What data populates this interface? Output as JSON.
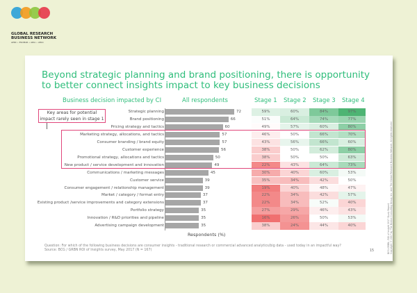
{
  "logo": {
    "name": "GLOBAL RESEARCH BUSINESS NETWORK",
    "line1": "GLOBAL RESEARCH",
    "line2": "BUSINESS NETWORK",
    "tagline": "APRC • ESOMAR • ARIA • AMAI",
    "colors": [
      "#2aa0d8",
      "#f29a1e",
      "#8cc63f",
      "#e5394a"
    ]
  },
  "title": "Beyond strategic planning and brand positioning, there is opportunity to better connect insights impact to key business decisions",
  "callout": "Key areas for potential impact rarely seen in stage 1",
  "chart_data": {
    "type": "bar",
    "column_headers": {
      "categories": "Business decision impacted by CI",
      "all": "All respondents",
      "stages": [
        "Stage 1",
        "Stage 2",
        "Stage 3",
        "Stage 4"
      ]
    },
    "categories": [
      "Strategic planning",
      "Brand positioning",
      "Pricing strategy and tactics",
      "Marketing strategy, allocations, and tactics",
      "Consumer branding / brand equity",
      "Customer experience",
      "Promotional strategy, allocations and tactics",
      "New product / service development and innovation",
      "Communications / marketing messages",
      "Customer service",
      "Consumer engagement / relationship management",
      "Market / category / format entry",
      "Existing product /service improvements and category extensions",
      "Portfolio strategy",
      "Innovation / R&D priorities and pipeline",
      "Advertising campaign development"
    ],
    "values": [
      72,
      66,
      60,
      57,
      57,
      56,
      50,
      49,
      45,
      39,
      39,
      37,
      37,
      35,
      35,
      35
    ],
    "stage_table": [
      [
        59,
        60,
        84,
        97
      ],
      [
        51,
        64,
        74,
        77
      ],
      [
        49,
        57,
        60,
        80
      ],
      [
        46,
        50,
        66,
        70
      ],
      [
        43,
        56,
        66,
        60
      ],
      [
        38,
        50,
        62,
        80
      ],
      [
        38,
        50,
        50,
        63
      ],
      [
        22,
        43,
        64,
        73
      ],
      [
        30,
        40,
        60,
        53
      ],
      [
        35,
        34,
        42,
        50
      ],
      [
        19,
        40,
        48,
        47
      ],
      [
        22,
        34,
        42,
        57
      ],
      [
        22,
        34,
        52,
        40
      ],
      [
        27,
        29,
        46,
        43
      ],
      [
        16,
        26,
        50,
        53
      ],
      [
        38,
        24,
        44,
        40
      ]
    ],
    "xlabel": "Respondents (%)",
    "highlight_rows": [
      "Marketing strategy, allocations, and tactics",
      "New product / service development and innovation"
    ],
    "colors": {
      "bar": "#a6a6a6",
      "high": "#4caf72",
      "low": "#f07070",
      "accent": "#2ebd7a",
      "highlight": "#e0457a"
    }
  },
  "footer": {
    "question": "Question: For which of the following business decisions are consumer insights - traditional research or commercial advanced analytics/big data - used today in an impactful way?",
    "source": "Source: BCG / GRBN ROI of Insights survey, May 2017 (N = 167)",
    "page": "15",
    "side_note_1": "BCG-GRBN - ROI of Insight 2017 Study Report",
    "side_note_2": "Copyright © 2017 by The Boston Consulting Group, Inc. and The Global Research Business Network. All rights reserved."
  }
}
